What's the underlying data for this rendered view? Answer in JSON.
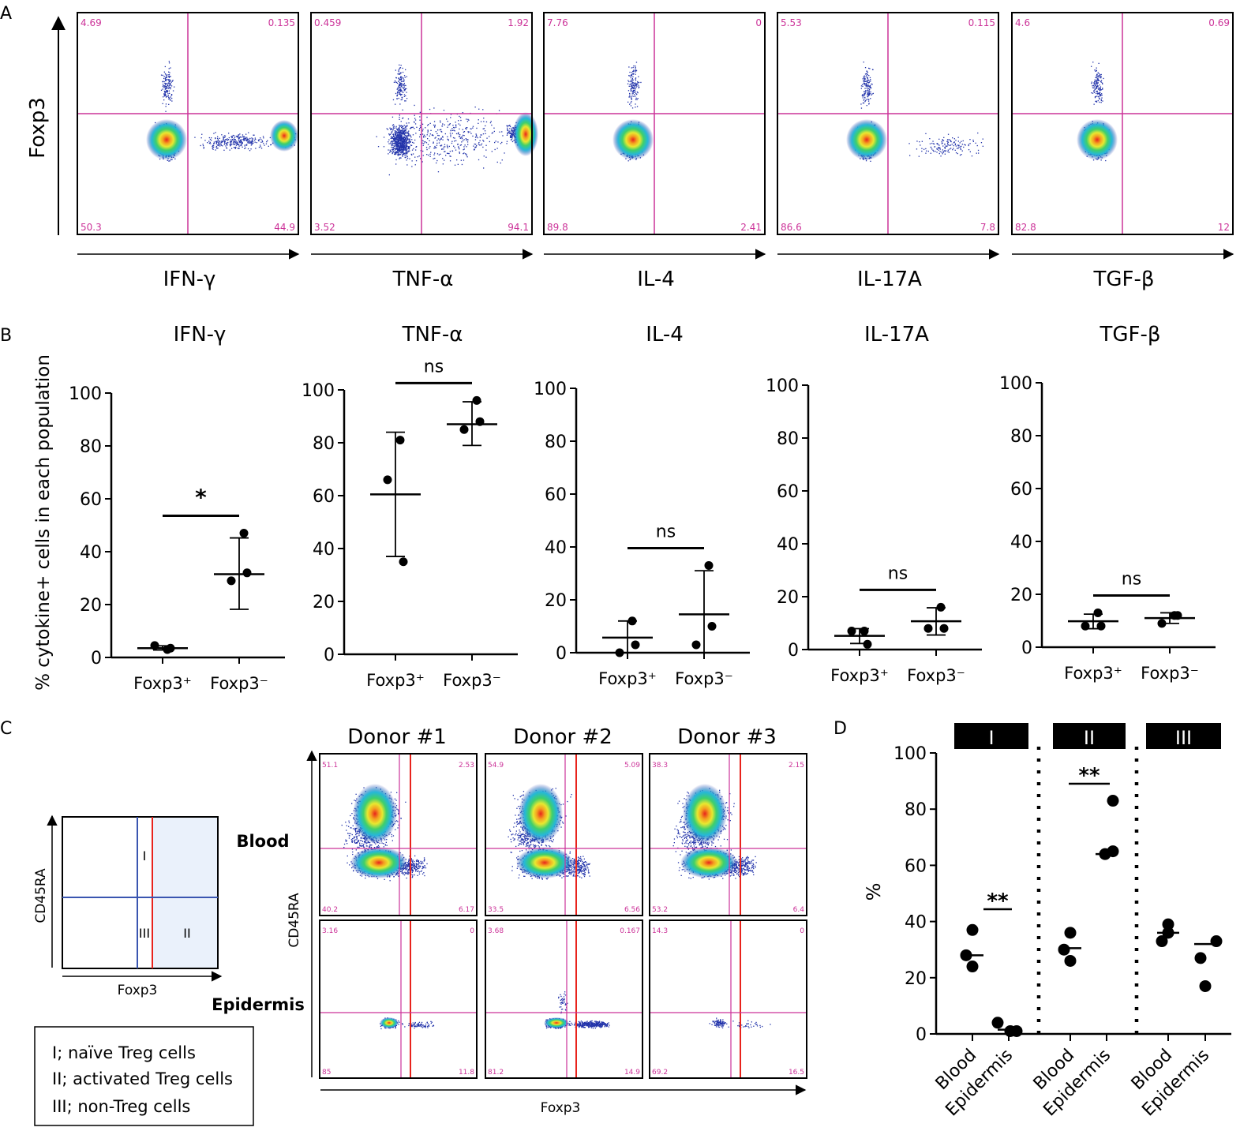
{
  "panel_letters": {
    "A": "A",
    "B": "B",
    "C": "C",
    "D": "D"
  },
  "colors": {
    "gate": "#cc3399",
    "red_gate": "#e8231c",
    "blue_gate": "#3a55b0",
    "axis": "#000000",
    "shade": "#eaf1fb",
    "dot": "#2233aa"
  },
  "panelA": {
    "ylabel": "Foxp3",
    "plots": [
      {
        "xlabel": "IFN-γ",
        "q": [
          "4.69",
          "0.135",
          "50.3",
          "44.9"
        ]
      },
      {
        "xlabel": "TNF-α",
        "q": [
          "0.459",
          "1.92",
          "3.52",
          "94.1"
        ]
      },
      {
        "xlabel": "IL-4",
        "q": [
          "7.76",
          "0",
          "89.8",
          "2.41"
        ]
      },
      {
        "xlabel": "IL-17A",
        "q": [
          "5.53",
          "0.115",
          "86.6",
          "7.8"
        ]
      },
      {
        "xlabel": "TGF-β",
        "q": [
          "4.6",
          "0.69",
          "82.8",
          "12"
        ]
      }
    ]
  },
  "chart_data": [
    {
      "type": "scatter",
      "title": "IFN-γ",
      "ylabel": "% cytokine+ cells in each population",
      "categories": [
        "Foxp3⁺",
        "Foxp3⁻"
      ],
      "ylim": [
        0,
        100
      ],
      "yticks": [
        "0",
        "20",
        "40",
        "60",
        "80",
        "100"
      ],
      "groups": [
        {
          "points": [
            3,
            4.5,
            3.5
          ],
          "mean": 3.5,
          "sd_low": 2.8,
          "sd_high": 4.4
        },
        {
          "points": [
            47,
            29,
            32
          ],
          "mean": 31.5,
          "sd_low": 18.2,
          "sd_high": 45.2
        }
      ],
      "significance": "*"
    },
    {
      "type": "scatter",
      "title": "TNF-α",
      "categories": [
        "Foxp3⁺",
        "Foxp3⁻"
      ],
      "ylim": [
        0,
        100
      ],
      "yticks": [
        "0",
        "20",
        "40",
        "60",
        "80",
        "100"
      ],
      "groups": [
        {
          "points": [
            81,
            66,
            35
          ],
          "mean": 60.5,
          "sd_low": 37,
          "sd_high": 84
        },
        {
          "points": [
            96,
            85,
            88
          ],
          "mean": 87,
          "sd_low": 79,
          "sd_high": 95.5
        }
      ],
      "significance": "ns"
    },
    {
      "type": "scatter",
      "title": "IL-4",
      "categories": [
        "Foxp3⁺",
        "Foxp3⁻"
      ],
      "ylim": [
        0,
        100
      ],
      "yticks": [
        "0",
        "20",
        "40",
        "60",
        "80",
        "100"
      ],
      "groups": [
        {
          "points": [
            12,
            0,
            3
          ],
          "mean": 5.7,
          "sd_low": 0,
          "sd_high": 12
        },
        {
          "points": [
            33,
            3,
            10
          ],
          "mean": 14.5,
          "sd_low": 0,
          "sd_high": 31
        }
      ],
      "significance": "ns"
    },
    {
      "type": "scatter",
      "title": "IL-17A",
      "categories": [
        "Foxp3⁺",
        "Foxp3⁻"
      ],
      "ylim": [
        0,
        100
      ],
      "yticks": [
        "0",
        "20",
        "40",
        "60",
        "80",
        "100"
      ],
      "groups": [
        {
          "points": [
            7,
            7,
            2
          ],
          "mean": 5.2,
          "sd_low": 2.3,
          "sd_high": 7.9
        },
        {
          "points": [
            16,
            8,
            8
          ],
          "mean": 10.7,
          "sd_low": 5.5,
          "sd_high": 15.8
        }
      ],
      "significance": "ns"
    },
    {
      "type": "scatter",
      "title": "TGF-β",
      "categories": [
        "Foxp3⁺",
        "Foxp3⁻"
      ],
      "ylim": [
        0,
        100
      ],
      "yticks": [
        "0",
        "20",
        "40",
        "60",
        "80",
        "100"
      ],
      "groups": [
        {
          "points": [
            13,
            8,
            8
          ],
          "mean": 9.8,
          "sd_low": 7,
          "sd_high": 12.5
        },
        {
          "points": [
            12,
            9,
            12
          ],
          "mean": 11,
          "sd_low": 9,
          "sd_high": 13
        }
      ],
      "significance": "ns"
    },
    {
      "type": "scatter",
      "title": "",
      "ylabel": "%",
      "ylim": [
        0,
        100
      ],
      "yticks": [
        "0",
        "20",
        "40",
        "60",
        "80",
        "100"
      ],
      "categories": [
        "Blood",
        "Epidermis",
        "Blood",
        "Epidermis",
        "Blood",
        "Epidermis"
      ],
      "sections": [
        "I",
        "II",
        "III"
      ],
      "groups": [
        {
          "points": [
            37,
            28,
            24
          ],
          "mean": 28
        },
        {
          "points": [
            4,
            1,
            1
          ],
          "mean": 1.5
        },
        {
          "points": [
            36,
            30,
            26
          ],
          "mean": 30.5
        },
        {
          "points": [
            83,
            64,
            65
          ],
          "mean": 64
        },
        {
          "points": [
            39,
            33,
            36
          ],
          "mean": 36
        },
        {
          "points": [
            33,
            27,
            17
          ],
          "mean": 32
        }
      ],
      "significance": [
        {
          "pair": [
            0,
            1
          ],
          "label": "**"
        },
        {
          "pair": [
            2,
            3
          ],
          "label": "**"
        }
      ]
    }
  ],
  "panelC": {
    "schematic": {
      "ylabel": "CD45RA",
      "xlabel": "Foxp3",
      "regions": [
        "I",
        "II",
        "III"
      ]
    },
    "legend": [
      "I; naïve Treg cells",
      "II; activated Treg cells",
      "III; non-Treg cells"
    ],
    "row_labels": [
      "Blood",
      "Epidermis"
    ],
    "donors": [
      "Donor #1",
      "Donor #2",
      "Donor #3"
    ],
    "ylabel": "CD45RA",
    "xlabel": "Foxp3",
    "blood_q": [
      [
        "51.1",
        "2.53",
        "40.2",
        "6.17"
      ],
      [
        "54.9",
        "5.09",
        "33.5",
        "6.56"
      ],
      [
        "38.3",
        "2.15",
        "53.2",
        "6.4"
      ]
    ],
    "epi_q": [
      [
        "3.16",
        "0",
        "85",
        "11.8"
      ],
      [
        "3.68",
        "0.167",
        "81.2",
        "14.9"
      ],
      [
        "14.3",
        "0",
        "69.2",
        "16.5"
      ]
    ]
  }
}
